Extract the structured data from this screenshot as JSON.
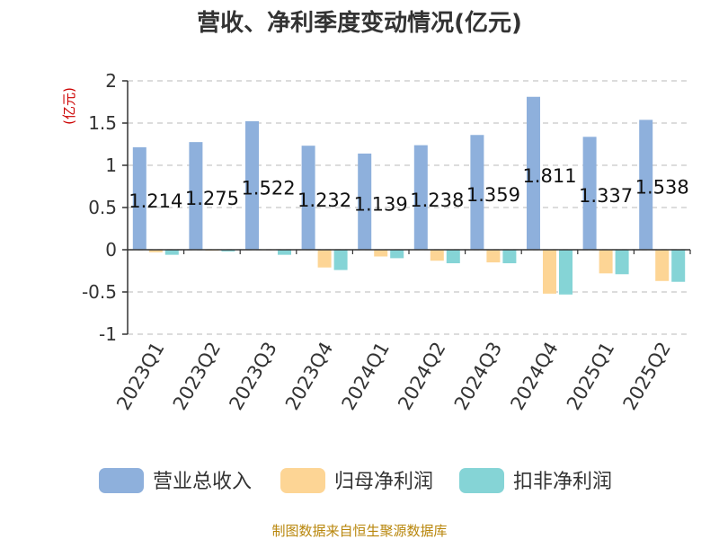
{
  "title": "营收、净利季度变动情况(亿元)",
  "ylabel": "(亿元)",
  "footer": "制图数据来自恒生聚源数据库",
  "chart_data": {
    "type": "bar",
    "title": "营收、净利季度变动情况(亿元)",
    "ylabel": "(亿元)",
    "xlabel": "",
    "ylim": [
      -1,
      2
    ],
    "yticks": [
      2,
      1.5,
      1,
      0.5,
      0,
      -0.5,
      -1
    ],
    "ytick_labels": [
      "2",
      "1.5",
      "1",
      "0.5",
      "0",
      "-0.5",
      "-1"
    ],
    "grid": true,
    "legend": "bottom",
    "categories": [
      "2023Q1",
      "2023Q2",
      "2023Q3",
      "2023Q4",
      "2024Q1",
      "2024Q2",
      "2024Q3",
      "2024Q4",
      "2025Q1",
      "2025Q2"
    ],
    "series": [
      {
        "name": "营业总收入",
        "color": "#8eb0dc",
        "values": [
          1.214,
          1.275,
          1.522,
          1.232,
          1.139,
          1.238,
          1.359,
          1.811,
          1.337,
          1.538
        ],
        "labels": [
          "1.214",
          "1.275",
          "1.522",
          "1.232",
          "1.139",
          "1.238",
          "1.359",
          "1.811",
          "1.337",
          "1.538"
        ]
      },
      {
        "name": "归母净利润",
        "color": "#fdd595",
        "values": [
          -0.03,
          -0.01,
          0.0,
          -0.21,
          -0.08,
          -0.13,
          -0.15,
          -0.52,
          -0.28,
          -0.37
        ]
      },
      {
        "name": "扣非净利润",
        "color": "#85d4d6",
        "values": [
          -0.06,
          -0.02,
          -0.06,
          -0.24,
          -0.1,
          -0.16,
          -0.16,
          -0.53,
          -0.29,
          -0.38
        ]
      }
    ]
  }
}
